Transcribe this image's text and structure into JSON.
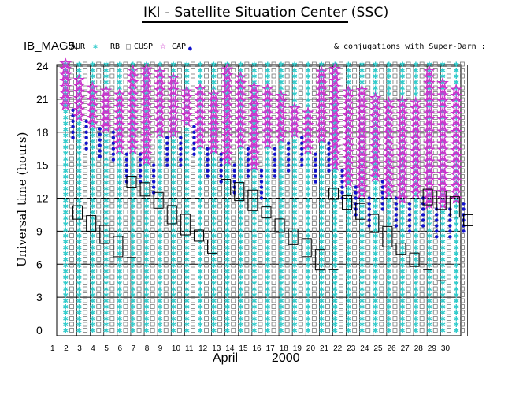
{
  "page": {
    "title": "IKI - Satellite Situation Center (SSC)",
    "dataset_label": "IB_MAG5:",
    "conjugations_note": "& conjugations with Super-Darn :"
  },
  "legend": [
    {
      "label": "AUR",
      "marker": "asterisk",
      "color": "#33cccc"
    },
    {
      "label": "RB",
      "marker": "square",
      "color": "#777777"
    },
    {
      "label": "CUSP",
      "marker": "square",
      "color": "#777777"
    },
    {
      "label": "CAP",
      "marker": "star",
      "color": "#cc33cc"
    }
  ],
  "icons": {
    "cap_dot": "blue-dot-icon"
  },
  "colors": {
    "aur": "#33cccc",
    "rb": "#777777",
    "cap": "#cc33cc",
    "cap_dot": "#1111cc",
    "axis": "#000000"
  },
  "chart_data": {
    "type": "scatter",
    "title": "IKI - Satellite Situation Center (SSC)",
    "ylabel": "Universal time (hours)",
    "xlabel_month": "April",
    "xlabel_year": "2000",
    "x_range": [
      1,
      31
    ],
    "ylim": [
      0,
      24
    ],
    "y_ticks": [
      0,
      3,
      6,
      9,
      12,
      15,
      18,
      21,
      24
    ],
    "x_ticks": [
      "1",
      "2",
      "3",
      "4",
      "5",
      "6",
      "7",
      "8",
      "9",
      "10",
      "11",
      "12",
      "13",
      "14",
      "15",
      "16",
      "17",
      "18",
      "19",
      "20",
      "21",
      "22",
      "23",
      "24",
      "25",
      "26",
      "27",
      "28",
      "29",
      "30"
    ],
    "grid": true,
    "conjugation_boxes": [
      {
        "day": 1,
        "ut": 10.7
      },
      {
        "day": 2,
        "ut": 9.7
      },
      {
        "day": 3,
        "ut": 8.7
      },
      {
        "day": 4,
        "ut": 7.6
      },
      {
        "day": 5,
        "ut": 13.5
      },
      {
        "day": 6,
        "ut": 12.8
      },
      {
        "day": 7,
        "ut": 11.8
      },
      {
        "day": 8,
        "ut": 10.5
      },
      {
        "day": 9,
        "ut": 9.6
      },
      {
        "day": 10,
        "ut": 8.6
      },
      {
        "day": 11,
        "ut": 7.6
      },
      {
        "day": 12,
        "ut": 13.0
      },
      {
        "day": 13,
        "ut": 12.6
      },
      {
        "day": 14,
        "ut": 11.8
      },
      {
        "day": 15,
        "ut": 10.7
      },
      {
        "day": 16,
        "ut": 9.5
      },
      {
        "day": 17,
        "ut": 8.5
      },
      {
        "day": 18,
        "ut": 7.5
      },
      {
        "day": 19,
        "ut": 6.4
      },
      {
        "day": 20,
        "ut": 12.4
      },
      {
        "day": 21,
        "ut": 11.6
      },
      {
        "day": 22,
        "ut": 10.8
      },
      {
        "day": 23,
        "ut": 9.7
      },
      {
        "day": 24,
        "ut": 8.5
      },
      {
        "day": 25,
        "ut": 7.4
      },
      {
        "day": 26,
        "ut": 6.4
      },
      {
        "day": 27,
        "ut": 12.1
      },
      {
        "day": 28,
        "ut": 11.8
      },
      {
        "day": 29,
        "ut": 11.2
      },
      {
        "day": 30,
        "ut": 10.0
      }
    ],
    "short_marks": [
      {
        "day": 5,
        "ut": 6.6
      },
      {
        "day": 20,
        "ut": 5.5
      },
      {
        "day": 27,
        "ut": 5.5
      },
      {
        "day": 28,
        "ut": 4.5
      }
    ],
    "cap_ranges": [
      {
        "day": 1,
        "from": 20.5,
        "to": 24.5
      },
      {
        "day": 2,
        "from": 19.5,
        "to": 23.0
      },
      {
        "day": 3,
        "from": 18.8,
        "to": 22.5
      },
      {
        "day": 4,
        "from": 18.5,
        "to": 22.0
      },
      {
        "day": 5,
        "from": 16.5,
        "to": 21.5
      },
      {
        "day": 6,
        "from": 16.5,
        "to": 24.0
      },
      {
        "day": 7,
        "from": 15.5,
        "to": 24.0
      },
      {
        "day": 8,
        "from": 18.0,
        "to": 24.0
      },
      {
        "day": 9,
        "from": 18.0,
        "to": 23.5
      },
      {
        "day": 10,
        "from": 19.0,
        "to": 22.0
      },
      {
        "day": 11,
        "from": 17.0,
        "to": 22.0
      },
      {
        "day": 12,
        "from": 16.5,
        "to": 22.0
      },
      {
        "day": 13,
        "from": 15.5,
        "to": 24.0
      },
      {
        "day": 14,
        "from": 17.0,
        "to": 23.5
      },
      {
        "day": 15,
        "from": 15.0,
        "to": 22.5
      },
      {
        "day": 16,
        "from": 17.0,
        "to": 22.0
      },
      {
        "day": 17,
        "from": 17.5,
        "to": 21.5
      },
      {
        "day": 18,
        "from": 18.0,
        "to": 20.5
      },
      {
        "day": 19,
        "from": 16.5,
        "to": 20.0
      },
      {
        "day": 20,
        "from": 17.5,
        "to": 24.0
      },
      {
        "day": 21,
        "from": 15.0,
        "to": 24.0
      },
      {
        "day": 22,
        "from": 13.5,
        "to": 22.0
      },
      {
        "day": 23,
        "from": 12.5,
        "to": 22.0
      },
      {
        "day": 24,
        "from": 14.0,
        "to": 21.5
      },
      {
        "day": 25,
        "from": 12.5,
        "to": 21.0
      },
      {
        "day": 26,
        "from": 12.0,
        "to": 21.0
      },
      {
        "day": 27,
        "from": 12.5,
        "to": 21.0
      },
      {
        "day": 28,
        "from": 11.5,
        "to": 24.0
      },
      {
        "day": 29,
        "from": 11.5,
        "to": 23.0
      },
      {
        "day": 30,
        "from": 12.0,
        "to": 22.0
      }
    ]
  }
}
